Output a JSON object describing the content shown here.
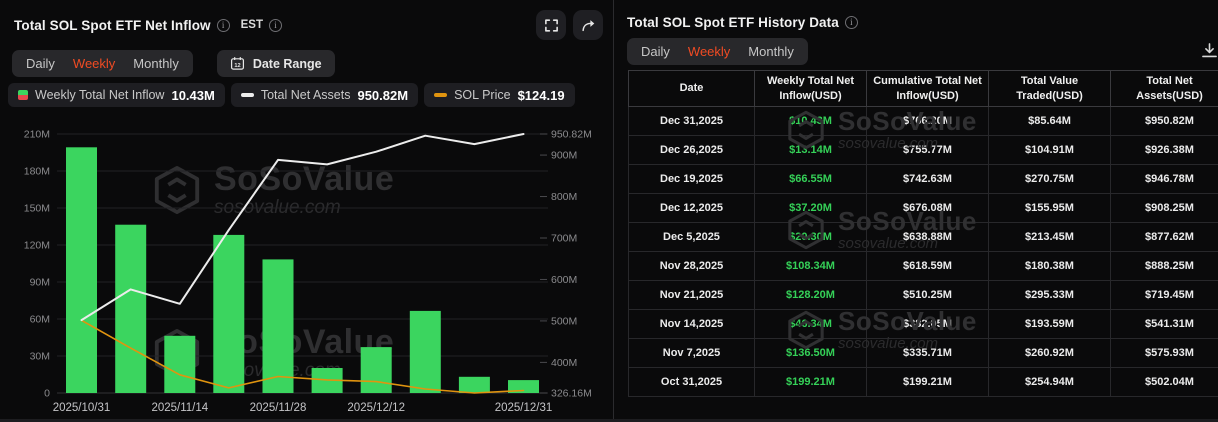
{
  "chart_panel": {
    "title": "Total SOL Spot ETF Net Inflow",
    "timezone": "EST",
    "tabs": [
      "Daily",
      "Weekly",
      "Monthly"
    ],
    "active_tab": "Weekly",
    "date_range_label": "Date Range",
    "legend": [
      {
        "label": "Weekly Total Net Inflow",
        "value": "10.43M"
      },
      {
        "label": "Total Net Assets",
        "value": "950.82M"
      },
      {
        "label": "SOL Price",
        "value": "$124.19"
      }
    ]
  },
  "chart_data": {
    "type": "bar+line combo",
    "units": "USD millions",
    "grid": "horizontal",
    "legend_position": "top-left",
    "x": [
      "2025/10/31",
      "2025/11/07",
      "2025/11/14",
      "2025/11/21",
      "2025/11/28",
      "2025/12/05",
      "2025/12/12",
      "2025/12/19",
      "2025/12/26",
      "2025/12/31"
    ],
    "series": [
      {
        "name": "Weekly Total Net Inflow",
        "type": "bar",
        "axis": "left",
        "color": "#3bd55f",
        "values": [
          199.21,
          136.5,
          46.34,
          128.2,
          108.34,
          20.3,
          37.2,
          66.55,
          13.14,
          10.43
        ]
      },
      {
        "name": "Total Net Assets",
        "type": "line",
        "axis": "right",
        "color": "#ececec",
        "values": [
          502.04,
          575.93,
          541.31,
          719.45,
          888.25,
          877.62,
          908.25,
          946.78,
          926.38,
          950.82
        ]
      },
      {
        "name": "SOL Price",
        "type": "line",
        "axis": "price",
        "color": "#e0940f",
        "values": [
          186,
          161.5,
          138,
          126.5,
          136.5,
          133.5,
          132,
          125.5,
          122,
          124.19
        ],
        "note": "USD; estimated from line position, last value 124.19 shown in legend"
      }
    ],
    "left_axis": {
      "min": 0,
      "max": 210,
      "tick_values": [
        0,
        30,
        60,
        90,
        120,
        150,
        180,
        210
      ],
      "tick_labels": [
        "0",
        "30M",
        "60M",
        "90M",
        "120M",
        "150M",
        "180M",
        "210M"
      ]
    },
    "right_axis": {
      "min": 326.16,
      "max": 950.82,
      "tick_values": [
        326.16,
        400,
        500,
        600,
        700,
        800,
        900,
        950.82
      ],
      "tick_labels": [
        "326.16M",
        "400M",
        "500M",
        "600M",
        "700M",
        "800M",
        "900M",
        "950.82M"
      ]
    },
    "price_axis": {
      "min": 122,
      "max": 350,
      "hidden": true
    },
    "x_tick_indices": [
      0,
      2,
      4,
      6,
      9
    ],
    "x_tick_labels": [
      "2025/10/31",
      "2025/11/14",
      "2025/11/28",
      "2025/12/12",
      "2025/12/31"
    ]
  },
  "history_panel": {
    "title": "Total SOL Spot ETF History Data",
    "tabs": [
      "Daily",
      "Weekly",
      "Monthly"
    ],
    "active_tab": "Weekly",
    "columns": [
      "Date",
      "Weekly Total Net Inflow(USD)",
      "Cumulative Total Net Inflow(USD)",
      "Total Value Traded(USD)",
      "Total Net Assets(USD)"
    ],
    "rows": [
      [
        "Dec 31,2025",
        "$10.43M",
        "$766.20M",
        "$85.64M",
        "$950.82M"
      ],
      [
        "Dec 26,2025",
        "$13.14M",
        "$755.77M",
        "$104.91M",
        "$926.38M"
      ],
      [
        "Dec 19,2025",
        "$66.55M",
        "$742.63M",
        "$270.75M",
        "$946.78M"
      ],
      [
        "Dec 12,2025",
        "$37.20M",
        "$676.08M",
        "$155.95M",
        "$908.25M"
      ],
      [
        "Dec 5,2025",
        "$20.30M",
        "$638.88M",
        "$213.45M",
        "$877.62M"
      ],
      [
        "Nov 28,2025",
        "$108.34M",
        "$618.59M",
        "$180.38M",
        "$888.25M"
      ],
      [
        "Nov 21,2025",
        "$128.20M",
        "$510.25M",
        "$295.33M",
        "$719.45M"
      ],
      [
        "Nov 14,2025",
        "$46.34M",
        "$382.05M",
        "$193.59M",
        "$541.31M"
      ],
      [
        "Nov 7,2025",
        "$136.50M",
        "$335.71M",
        "$260.92M",
        "$575.93M"
      ],
      [
        "Oct 31,2025",
        "$199.21M",
        "$199.21M",
        "$254.94M",
        "$502.04M"
      ]
    ]
  },
  "watermark": {
    "brand": "SoSoValue",
    "domain": "sosovalue.com"
  },
  "colors": {
    "positive_green": "#3bd55f",
    "negative_red": "#e5484d",
    "sol_price_orange": "#e0940f",
    "assets_line_white": "#ececec",
    "accent_tab_red": "#f04b23",
    "page_bg": "#0a0a0b",
    "panel_border": "#2b2b2e",
    "gridline": "#232326"
  }
}
